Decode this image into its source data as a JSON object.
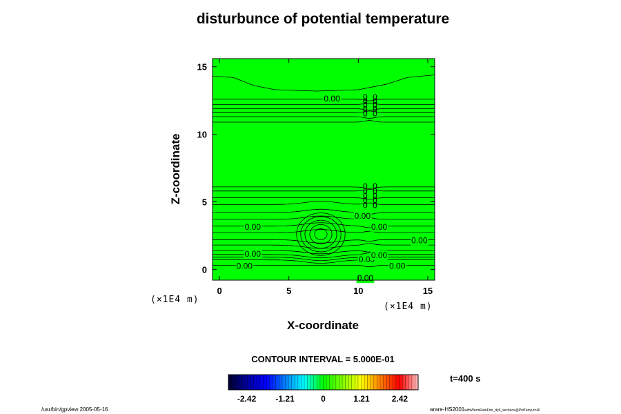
{
  "chart_data": {
    "type": "heatmap",
    "title": "disturbunce of potential temperature",
    "xlabel": "X-coordinate",
    "ylabel": "Z-coordinate",
    "x_unit": "(×1E4 m)",
    "z_unit": "(×1E4 m)",
    "xlim": [
      -0.5,
      15.5
    ],
    "ylim": [
      -0.8,
      15.6
    ],
    "x_ticks": [
      0,
      5,
      10,
      15
    ],
    "y_ticks": [
      0,
      5,
      10,
      15
    ],
    "grid": false,
    "field_color": "#00ff00",
    "contour_interval_text": "CONTOUR INTERVAL = 5.000E-01",
    "contour_levels_z": [
      0.3,
      0.7,
      0.9,
      1.1,
      1.4,
      1.8,
      2.2,
      2.7,
      3.2,
      3.7,
      4.2,
      4.8,
      5.3,
      5.8,
      6.1,
      10.9,
      11.3,
      11.6,
      11.9,
      12.2,
      12.6
    ],
    "bubble": {
      "center_x": 7.3,
      "center_z": 2.6,
      "radii": [
        0.45,
        0.8,
        1.15,
        1.45,
        1.75
      ]
    },
    "contour_labels": [
      {
        "text": "0.00",
        "x": 8.1,
        "z": 12.6
      },
      {
        "text": "0.00",
        "x": 2.4,
        "z": 3.1
      },
      {
        "text": "0.00",
        "x": 11.5,
        "z": 3.1
      },
      {
        "text": "0.00",
        "x": 14.4,
        "z": 2.1
      },
      {
        "text": "0.00",
        "x": 2.4,
        "z": 1.1
      },
      {
        "text": "0.00",
        "x": 1.8,
        "z": 0.2
      },
      {
        "text": "0.00",
        "x": 12.8,
        "z": 0.2
      },
      {
        "text": "0.00",
        "x": 10.5,
        "z": -0.7
      },
      {
        "text": "0.00",
        "x": 10.3,
        "z": 3.9
      },
      {
        "text": "0.00",
        "x": 10.6,
        "z": 0.7
      },
      {
        "text": "0.00",
        "x": 11.5,
        "z": 1.0
      }
    ],
    "label_stacks": [
      {
        "x": 10.5,
        "z_top": 12.7,
        "count": 5,
        "step": 0.3
      },
      {
        "x": 11.2,
        "z_top": 12.7,
        "count": 5,
        "step": 0.3
      },
      {
        "x": 10.5,
        "z_top": 6.1,
        "count": 5,
        "step": 0.35
      },
      {
        "x": 11.2,
        "z_top": 6.1,
        "count": 5,
        "step": 0.35
      }
    ],
    "colorbar": {
      "ticks": [
        "-2.42",
        "-1.21",
        "0",
        "1.21",
        "2.42"
      ],
      "range": [
        -3.0,
        3.0
      ],
      "tick_values": [
        -2.42,
        -1.21,
        0,
        1.21,
        2.42
      ],
      "colors": [
        "#000030",
        "#0000a0",
        "#0000ff",
        "#0080ff",
        "#00ffff",
        "#00ff00",
        "#80ff00",
        "#ffff00",
        "#ff8000",
        "#ff0000",
        "#ffc0c0"
      ]
    },
    "time_label": "t=400 s"
  },
  "footer": {
    "left": "/usr/bin/gpview 2005-05-16",
    "right_main": "arare-HS2001",
    "right_sub": "withWarmRainFrm_dy6_sechuce@PotTemp,t=40"
  }
}
